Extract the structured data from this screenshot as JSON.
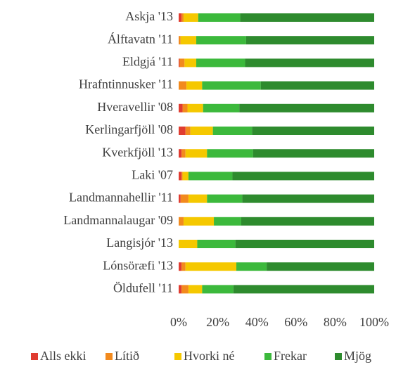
{
  "chart_data": {
    "type": "stacked_barh",
    "categories": [
      "Askja '13",
      "Álftavatn '11",
      "Eldgjá '11",
      "Hrafntinnusker '11",
      "Hveravellir '08",
      "Kerlingarfjöll '08",
      "Kverkfjöll '13",
      "Laki '07",
      "Landmannahellir '11",
      "Landmannalaugar '09",
      "Langisjór '13",
      "Lónsöræfi '13",
      "Öldufell '11"
    ],
    "series": [
      {
        "name": "Alls ekki",
        "color": "#e03c31",
        "values": [
          1.5,
          0,
          0.5,
          0,
          2,
          3.5,
          1.5,
          1.5,
          1,
          0,
          0,
          1.5,
          1.5
        ]
      },
      {
        "name": "Lítið",
        "color": "#f28a1e",
        "values": [
          1,
          1,
          2.5,
          4,
          2.5,
          2.5,
          2,
          0.5,
          4,
          2.5,
          0,
          2,
          3.5
        ]
      },
      {
        "name": "Hvorki né",
        "color": "#f5c800",
        "values": [
          7.5,
          8,
          6,
          8,
          8,
          11.5,
          11,
          3,
          9.5,
          15.5,
          9.5,
          26,
          7
        ]
      },
      {
        "name": "Frekar",
        "color": "#3cb93c",
        "values": [
          21.5,
          25.5,
          25,
          30,
          18.5,
          20,
          23.5,
          22.5,
          18,
          14,
          19.5,
          15.5,
          16
        ]
      },
      {
        "name": "Mjög",
        "color": "#2e8b2e",
        "values": [
          68.5,
          65.5,
          66,
          58,
          69,
          62.5,
          62,
          72.5,
          67.5,
          68,
          71,
          55,
          72
        ]
      }
    ],
    "xlim": [
      0,
      100
    ],
    "xticks": [
      {
        "value": 0,
        "label": "0%"
      },
      {
        "value": 20,
        "label": "20%"
      },
      {
        "value": 40,
        "label": "40%"
      },
      {
        "value": 60,
        "label": "60%"
      },
      {
        "value": 80,
        "label": "80%"
      },
      {
        "value": 100,
        "label": "100%"
      }
    ],
    "legend": "bottom"
  }
}
